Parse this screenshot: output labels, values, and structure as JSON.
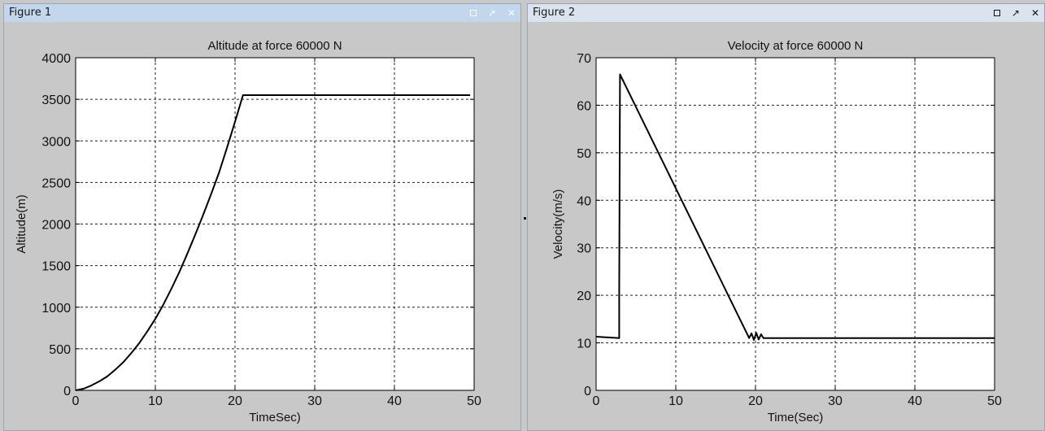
{
  "figures": [
    {
      "window_title": "Figure 1",
      "buttons": [
        "dock-icon",
        "undock-icon",
        "close-icon"
      ],
      "button_glyphs": {
        "undock": "↗",
        "close": "✕"
      }
    },
    {
      "window_title": "Figure 2",
      "buttons": [
        "dock-icon",
        "undock-icon",
        "close-icon"
      ],
      "button_glyphs": {
        "undock": "↗",
        "close": "✕"
      }
    }
  ],
  "chart_data": [
    {
      "type": "line",
      "title": "Altitude at force 60000 N",
      "xlabel": "TimeSec)",
      "ylabel": "Altitude(m)",
      "xlim": [
        0,
        50
      ],
      "ylim": [
        0,
        4000
      ],
      "xticks": [
        0,
        10,
        20,
        30,
        40,
        50
      ],
      "yticks": [
        0,
        500,
        1000,
        1500,
        2000,
        2500,
        3000,
        3500,
        4000
      ],
      "grid": true,
      "series": [
        {
          "x": [
            0,
            1,
            2,
            3,
            4,
            5,
            6,
            7,
            8,
            9,
            10,
            11,
            12,
            13,
            14,
            15,
            16,
            17,
            18,
            19,
            20,
            21,
            22,
            25,
            30,
            35,
            40,
            45,
            49.5
          ],
          "values": [
            0,
            20,
            60,
            110,
            170,
            250,
            340,
            450,
            570,
            710,
            860,
            1030,
            1220,
            1420,
            1640,
            1870,
            2110,
            2360,
            2620,
            2920,
            3230,
            3550,
            3550,
            3550,
            3550,
            3550,
            3550,
            3550,
            3550
          ]
        }
      ]
    },
    {
      "type": "line",
      "title": "Velocity at force 60000 N",
      "xlabel": "Time(Sec)",
      "ylabel": "Velocity(m/s)",
      "xlim": [
        0,
        50
      ],
      "ylim": [
        0,
        70
      ],
      "xticks": [
        0,
        10,
        20,
        30,
        40,
        50
      ],
      "yticks": [
        0,
        10,
        20,
        30,
        40,
        50,
        60,
        70
      ],
      "grid": true,
      "series": [
        {
          "x": [
            0,
            1,
            2.9,
            2.9,
            3.0,
            19.2,
            19.5,
            19.8,
            20.1,
            20.4,
            20.7,
            21.0,
            21.5,
            25,
            30,
            40,
            50
          ],
          "values": [
            11.3,
            11.2,
            11.0,
            20.0,
            66.5,
            11.0,
            12.0,
            10.6,
            12.1,
            10.7,
            11.8,
            11.0,
            11.0,
            11.0,
            11.0,
            11.0,
            11.0
          ]
        }
      ]
    }
  ]
}
